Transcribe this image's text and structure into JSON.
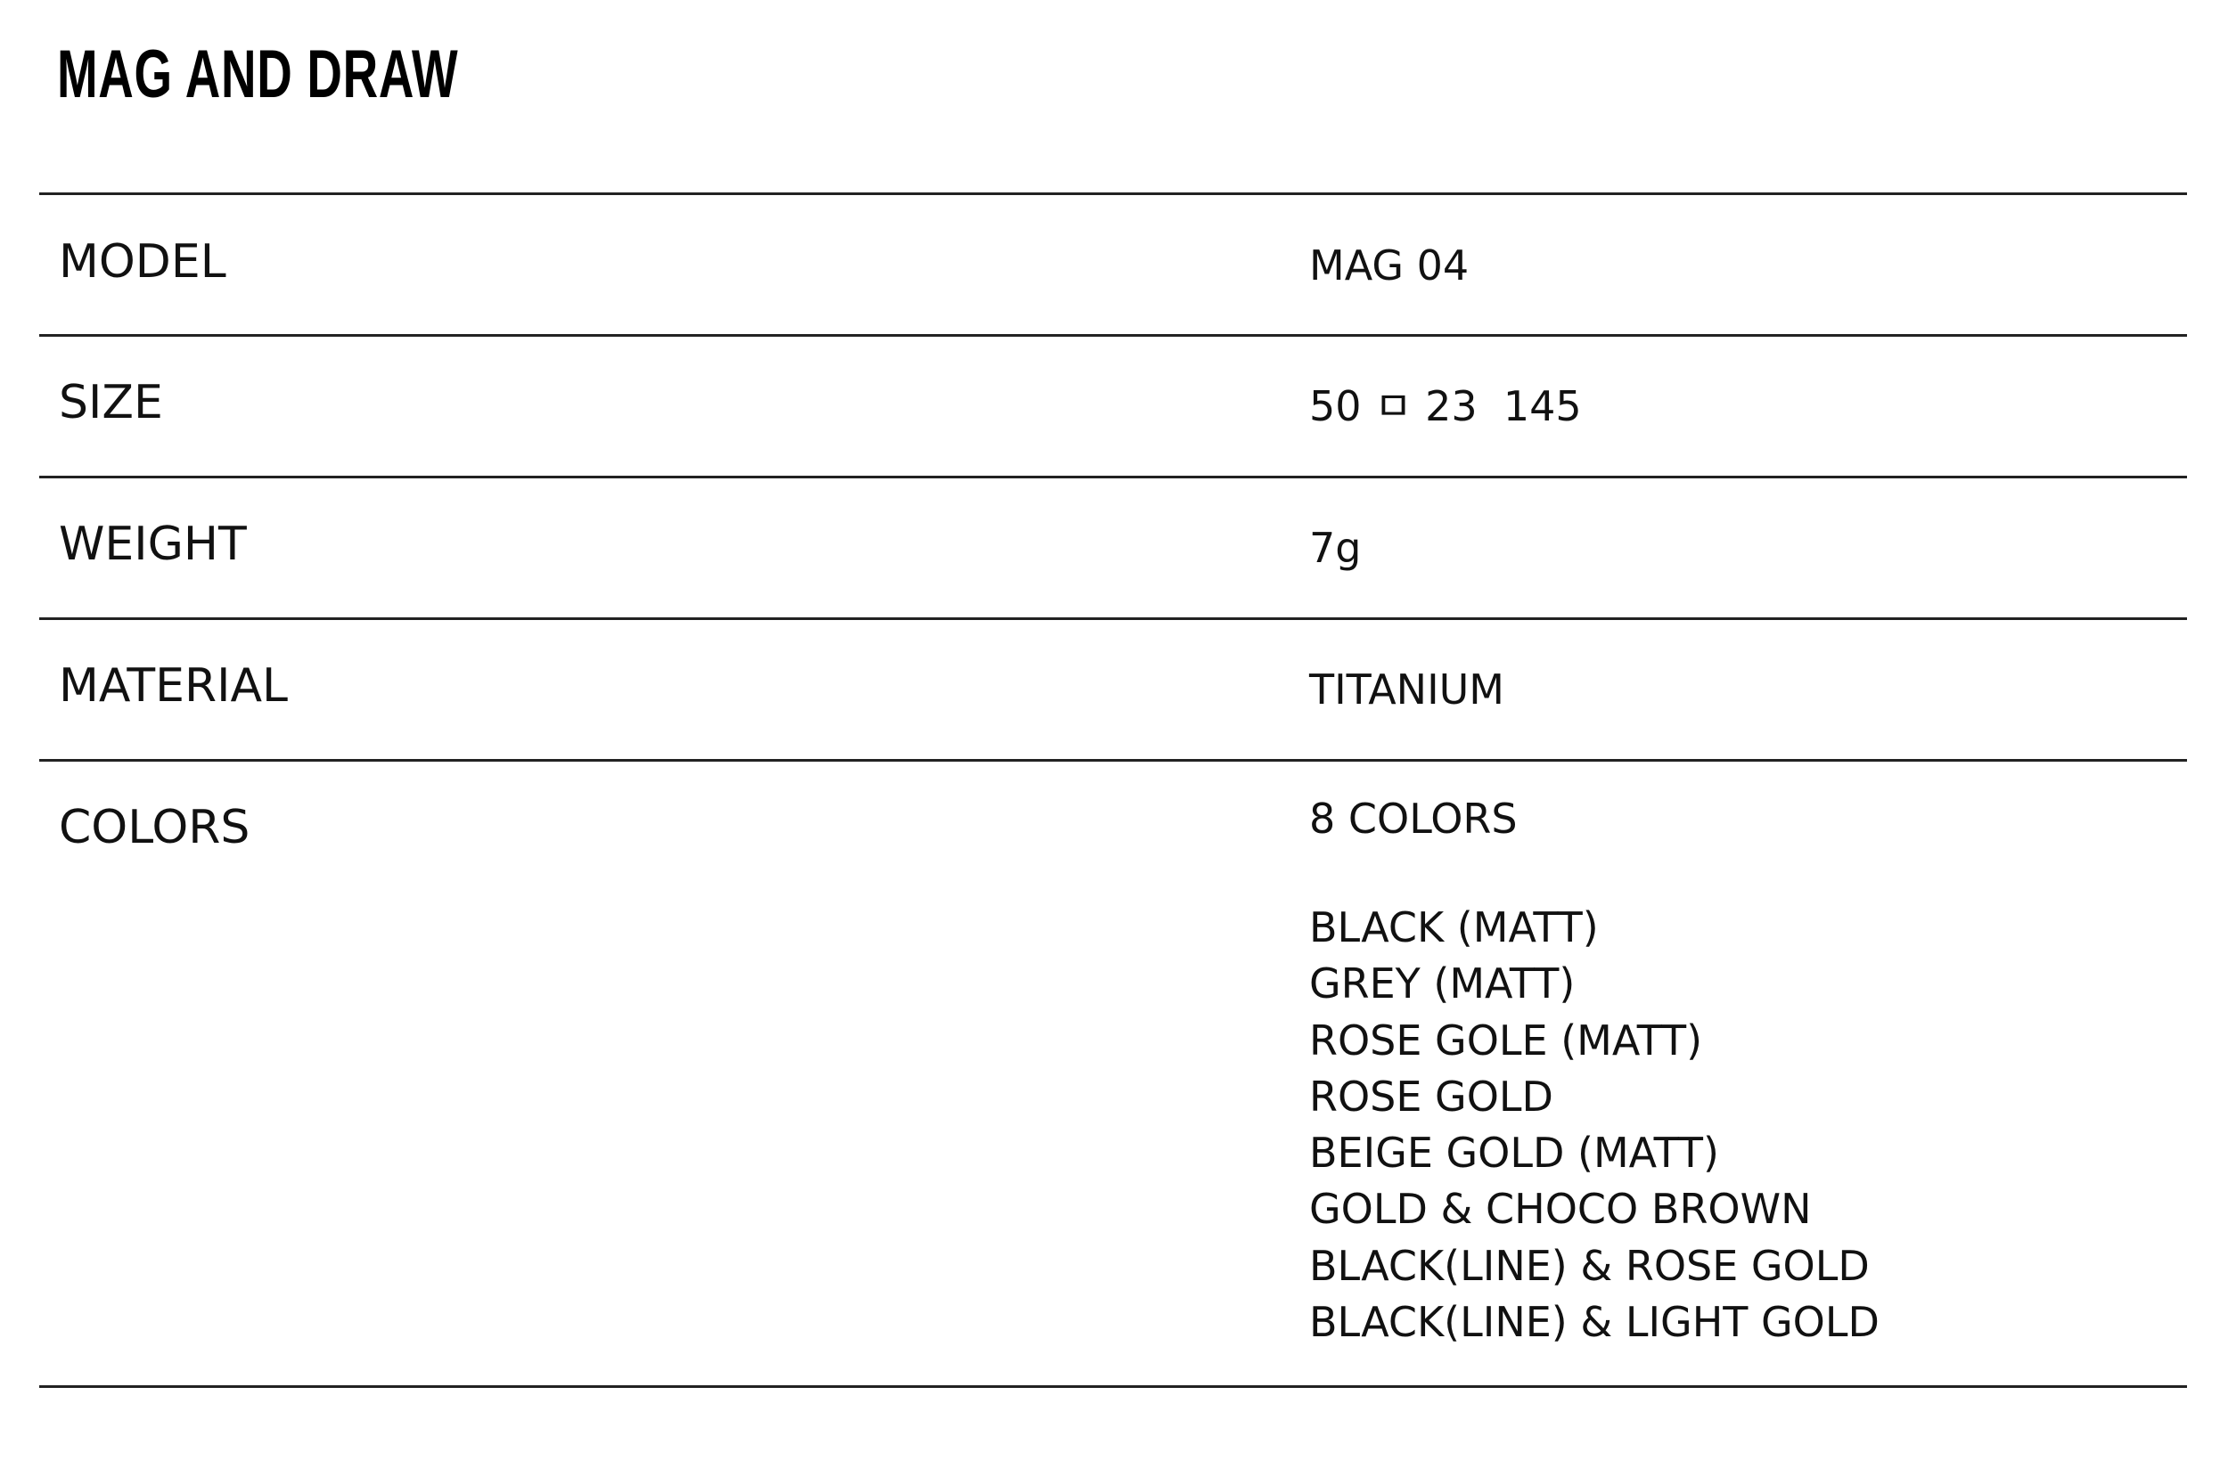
{
  "title": "MAG AND DRAW",
  "specs": {
    "model": {
      "label": "MODEL",
      "value": "MAG 04"
    },
    "size": {
      "label": "SIZE",
      "value": "50 ㅁ 23  145"
    },
    "weight": {
      "label": "WEIGHT",
      "value": "7g"
    },
    "material": {
      "label": "MATERIAL",
      "value": "TITANIUM"
    },
    "colors": {
      "label": "COLORS",
      "value": "8 COLORS",
      "items": [
        "BLACK (MATT)",
        "GREY (MATT)",
        "ROSE GOLE (MATT)",
        "ROSE GOLD",
        "BEIGE GOLD (MATT)",
        "GOLD & CHOCO BROWN",
        "BLACK(LINE) & ROSE GOLD",
        "BLACK(LINE) & LIGHT GOLD"
      ]
    }
  }
}
